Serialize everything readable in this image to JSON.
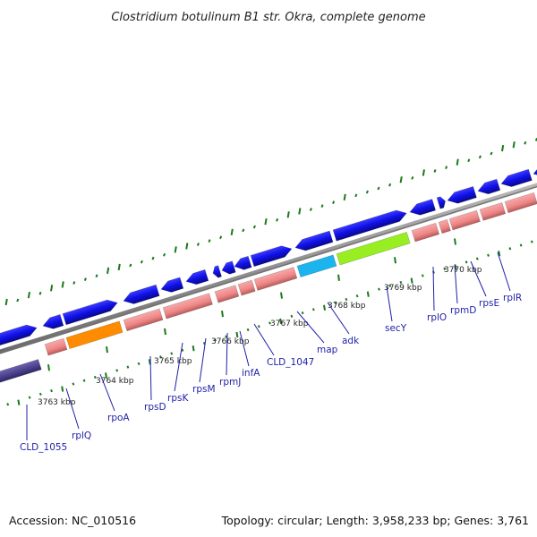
{
  "title": "Clostridium botulinum B1 str. Okra, complete genome",
  "footer": {
    "accession": "Accession: NC_010516",
    "topology": "Topology: circular; Length: 3,958,233 bp; Genes: 3,761"
  },
  "ticks": [
    "3763 kbp",
    "3764 kbp",
    "3765 kbp",
    "3766 kbp",
    "3767 kbp",
    "3768 kbp",
    "3769 kbp",
    "3770 kbp"
  ],
  "genes": [
    "CLD_1055",
    "rplQ",
    "rpoA",
    "rpsD",
    "rpsK",
    "rpsM",
    "rpmJ",
    "infA",
    "CLD_1047",
    "map",
    "adk",
    "secY",
    "rplO",
    "rpmD",
    "rpsE",
    "rplR"
  ],
  "colors": {
    "cds_forward": "#1010e8",
    "cds_reverse": "#4a3f8f",
    "rna_band": "#f08a8a",
    "backbone": "#888888",
    "gc_ticks": "#1a7a1a",
    "label": "#1f1fa8",
    "orange_feature": "#ff8c00",
    "cyan_feature": "#1cb4ee",
    "green_feature": "#99ee22"
  }
}
